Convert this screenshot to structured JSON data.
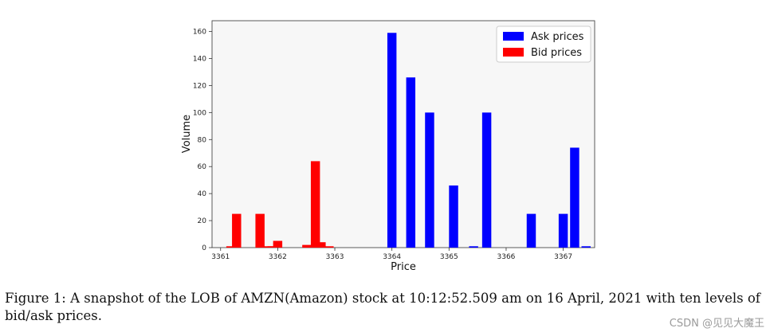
{
  "chart_data": {
    "type": "bar",
    "xlabel": "Price",
    "ylabel": "Volume",
    "xlim": [
      3360.85,
      3367.55
    ],
    "ylim": [
      0,
      168
    ],
    "xticks": [
      3361,
      3362,
      3363,
      3364,
      3365,
      3366,
      3367
    ],
    "yticks": [
      0,
      20,
      40,
      60,
      80,
      100,
      120,
      140,
      160
    ],
    "legend_position": "top-right",
    "bar_width": 0.16,
    "series": [
      {
        "name": "Ask prices",
        "color": "#0000ff",
        "points": [
          {
            "x": 3364.0,
            "y": 159
          },
          {
            "x": 3364.33,
            "y": 126
          },
          {
            "x": 3364.66,
            "y": 100
          },
          {
            "x": 3365.08,
            "y": 46
          },
          {
            "x": 3365.43,
            "y": 1
          },
          {
            "x": 3365.66,
            "y": 100
          },
          {
            "x": 3366.44,
            "y": 25
          },
          {
            "x": 3367.0,
            "y": 25
          },
          {
            "x": 3367.2,
            "y": 74
          },
          {
            "x": 3367.4,
            "y": 1
          }
        ]
      },
      {
        "name": "Bid prices",
        "color": "#ff0000",
        "points": [
          {
            "x": 3361.28,
            "y": 25
          },
          {
            "x": 3361.18,
            "y": 1
          },
          {
            "x": 3361.69,
            "y": 25
          },
          {
            "x": 3361.84,
            "y": 1
          },
          {
            "x": 3362.0,
            "y": 5
          },
          {
            "x": 3362.51,
            "y": 2
          },
          {
            "x": 3362.66,
            "y": 64
          },
          {
            "x": 3362.76,
            "y": 4
          },
          {
            "x": 3362.9,
            "y": 1
          },
          {
            "x": 3361.9,
            "y": 1
          }
        ]
      }
    ]
  },
  "caption": "Figure 1: A snapshot of the LOB of AMZN(Amazon) stock at 10:12:52.509 am on 16 April, 2021 with ten levels of bid/ask prices.",
  "watermark": "CSDN @见见大魔王"
}
